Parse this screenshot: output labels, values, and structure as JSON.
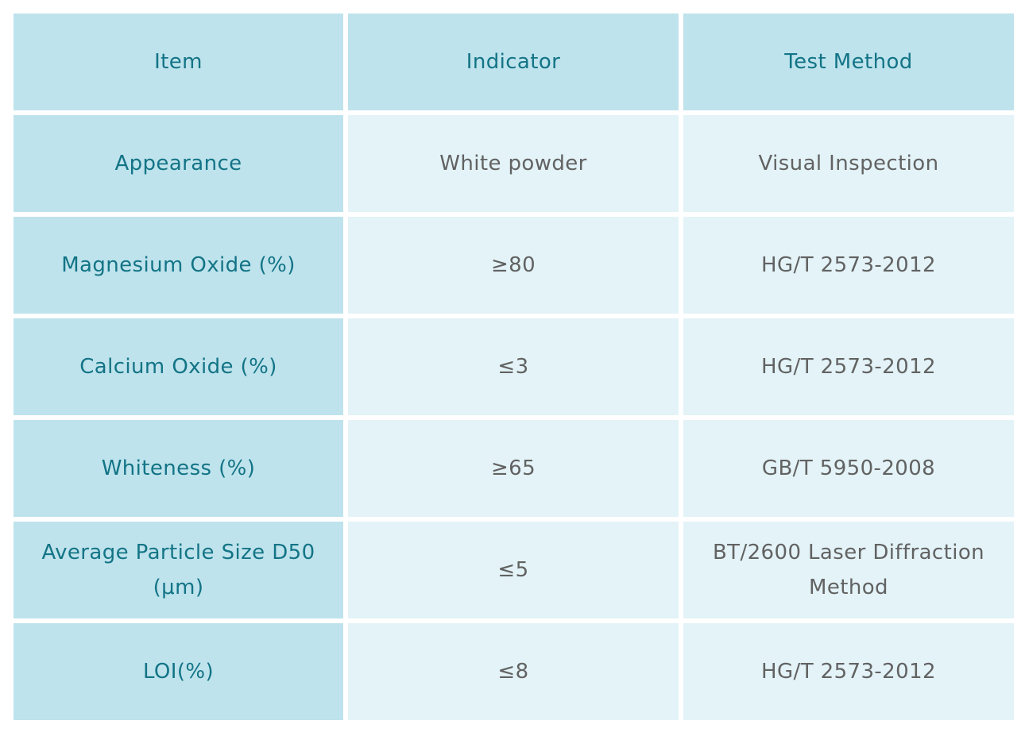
{
  "table": {
    "headers": [
      "Item",
      "Indicator",
      "Test Method"
    ],
    "rows": [
      {
        "item": "Appearance",
        "indicator": "White powder",
        "method": "Visual Inspection"
      },
      {
        "item": "Magnesium Oxide (%)",
        "indicator": "≥80",
        "method": "HG/T 2573-2012"
      },
      {
        "item": "Calcium Oxide (%)",
        "indicator": "≤3",
        "method": "HG/T 2573-2012"
      },
      {
        "item": "Whiteness (%)",
        "indicator": "≥65",
        "method": "GB/T 5950-2008"
      },
      {
        "item": "Average Particle Size D50 (μm)",
        "indicator": "≤5",
        "method": "BT/2600 Laser Diffraction Method"
      },
      {
        "item": "LOI(%)",
        "indicator": "≤8",
        "method": "HG/T 2573-2012"
      }
    ]
  },
  "colors": {
    "header_bg": "#bee3ec",
    "cell_bg": "#e3f3f8",
    "key_text": "#137486",
    "value_text": "#626262"
  }
}
